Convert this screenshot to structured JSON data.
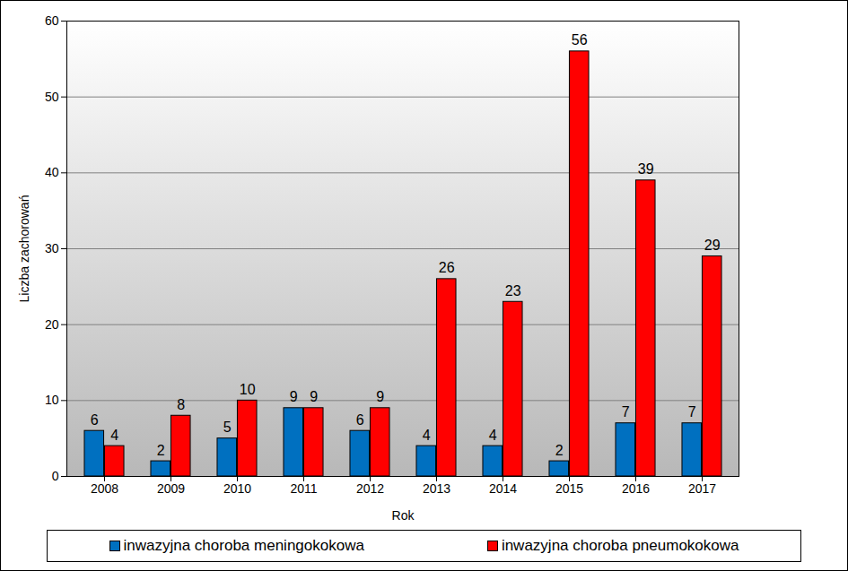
{
  "chart_data": {
    "type": "bar",
    "x_label": "Rok",
    "y_label": "Liczba zachorowań",
    "categories": [
      "2008",
      "2009",
      "2010",
      "2011",
      "2012",
      "2013",
      "2014",
      "2015",
      "2016",
      "2017"
    ],
    "series": [
      {
        "name": "inwazyjna choroba meningokokowa",
        "color": "#0070c0",
        "values": [
          6,
          2,
          5,
          9,
          6,
          4,
          4,
          2,
          7,
          7
        ]
      },
      {
        "name": "inwazyjna choroba pneumokokowa",
        "color": "#ff0000",
        "values": [
          4,
          8,
          10,
          9,
          9,
          26,
          23,
          56,
          39,
          29
        ]
      }
    ],
    "ylim": [
      0,
      60
    ],
    "yticks": [
      0,
      10,
      20,
      30,
      40,
      50,
      60
    ],
    "grid": true,
    "data_labels": true,
    "legend": "bottom"
  }
}
